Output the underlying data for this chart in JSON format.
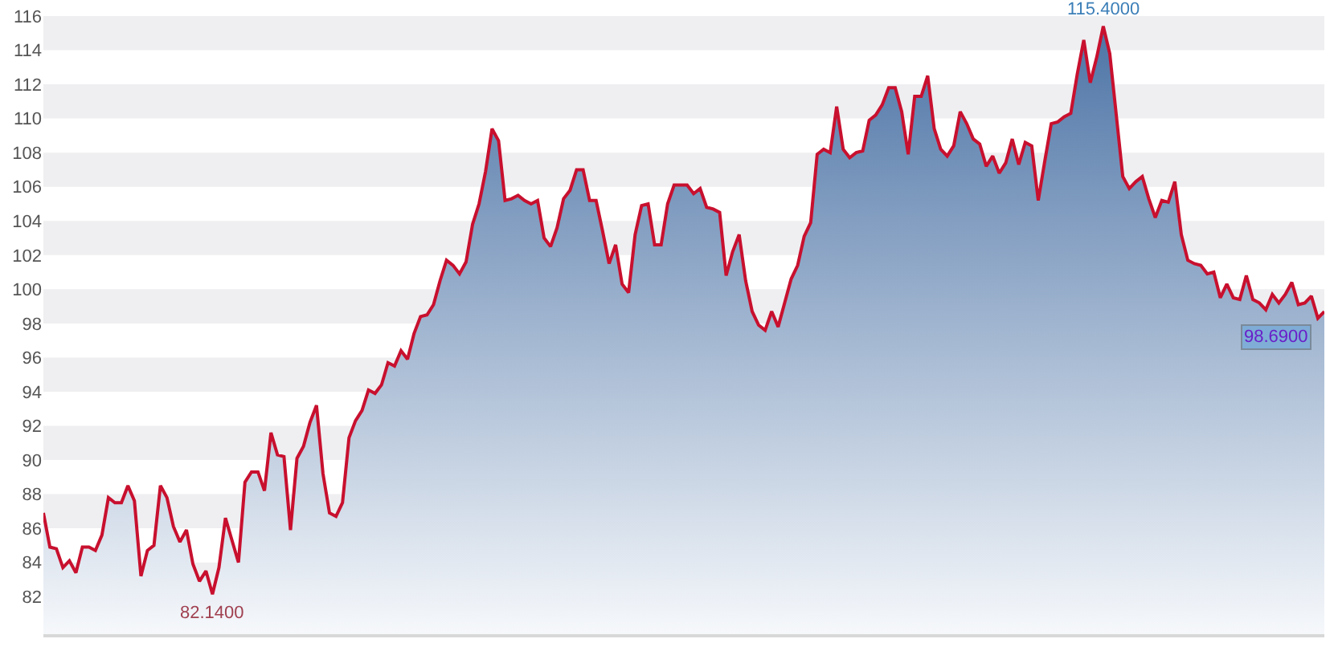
{
  "chart_data": {
    "type": "area",
    "categories": [
      null,
      null,
      null,
      null,
      null,
      null,
      null,
      null,
      null,
      null,
      null,
      null,
      null,
      null,
      null,
      null,
      null,
      null,
      null,
      null,
      null,
      null,
      null,
      null,
      null,
      null,
      null,
      null,
      null,
      null,
      null,
      null,
      null,
      null,
      null,
      null,
      null,
      null,
      null,
      null,
      null,
      null,
      null,
      null,
      null,
      null,
      null,
      null,
      null,
      null,
      null,
      null,
      null,
      null,
      null,
      null,
      null,
      null,
      null,
      null,
      null,
      null,
      null,
      null,
      null,
      null,
      null,
      null,
      null,
      null,
      null,
      null,
      null,
      null,
      null,
      null,
      null,
      null,
      null,
      null,
      null,
      null,
      null,
      null,
      null,
      null,
      null,
      null,
      null,
      null,
      null,
      null,
      null,
      null,
      null,
      null,
      null,
      null,
      null,
      null,
      null,
      null,
      null,
      null,
      null,
      null,
      null,
      null,
      null,
      null,
      null,
      null,
      null,
      null,
      null,
      null,
      null,
      null,
      null,
      null,
      null,
      null,
      null,
      null,
      null,
      null,
      null,
      null,
      null,
      null,
      null,
      null,
      null,
      null,
      null,
      null,
      null,
      null,
      null,
      null,
      null,
      null,
      null,
      null,
      null,
      null,
      null,
      null,
      null,
      null,
      null,
      null,
      null,
      null,
      null,
      null,
      null,
      null,
      null,
      null,
      null,
      null,
      null,
      null,
      null,
      null,
      null,
      null,
      null,
      null,
      null,
      null,
      null,
      null,
      null,
      null,
      null,
      null,
      null,
      null,
      null,
      null,
      null,
      null,
      null,
      null,
      null,
      null,
      null,
      null,
      null,
      null,
      null,
      null,
      null,
      null,
      null,
      null
    ],
    "series": [
      {
        "color": "#c8102e",
        "values": [
          86.9,
          84.9,
          84.8,
          83.7,
          84.1,
          83.4,
          84.9,
          84.9,
          84.7,
          85.6,
          87.8,
          87.5,
          87.5,
          88.5,
          87.6,
          83.2,
          84.7,
          85.0,
          88.5,
          87.8,
          86.1,
          85.2,
          85.9,
          83.9,
          82.9,
          83.5,
          82.14,
          83.7,
          86.6,
          85.3,
          84.0,
          88.7,
          89.3,
          89.3,
          88.2,
          91.6,
          90.3,
          90.2,
          85.9,
          90.1,
          90.8,
          92.2,
          93.2,
          89.2,
          86.9,
          86.7,
          87.5,
          91.3,
          92.3,
          92.9,
          94.1,
          93.9,
          94.4,
          95.7,
          95.5,
          96.4,
          95.9,
          97.4,
          98.4,
          98.5,
          99.1,
          100.5,
          101.7,
          101.4,
          100.9,
          101.6,
          103.8,
          105.0,
          106.9,
          109.4,
          108.7,
          105.2,
          105.3,
          105.5,
          105.2,
          105.0,
          105.2,
          103.0,
          102.5,
          103.6,
          105.3,
          105.8,
          107.0,
          107.0,
          105.2,
          105.2,
          103.4,
          101.5,
          102.6,
          100.3,
          99.8,
          103.2,
          104.9,
          105.0,
          102.6,
          102.6,
          105.0,
          106.1,
          106.1,
          106.1,
          105.6,
          105.9,
          104.8,
          104.7,
          104.5,
          100.8,
          102.2,
          103.2,
          100.5,
          98.7,
          97.9,
          97.6,
          98.7,
          97.8,
          99.2,
          100.6,
          101.4,
          103.1,
          103.9,
          107.9,
          108.2,
          108.0,
          110.7,
          108.2,
          107.7,
          108.0,
          108.1,
          109.9,
          110.2,
          110.8,
          111.8,
          111.8,
          110.4,
          107.9,
          111.3,
          111.3,
          112.5,
          109.4,
          108.2,
          107.8,
          108.4,
          110.4,
          109.7,
          108.8,
          108.5,
          107.2,
          107.8,
          106.8,
          107.4,
          108.8,
          107.3,
          108.6,
          108.4,
          105.2,
          107.5,
          109.7,
          109.8,
          110.1,
          110.3,
          112.6,
          114.6,
          112.1,
          113.6,
          115.4,
          113.8,
          110.2,
          106.6,
          105.9,
          106.3,
          106.6,
          105.3,
          104.2,
          105.2,
          105.1,
          106.3,
          103.2,
          101.7,
          101.5,
          101.4,
          100.9,
          101.0,
          99.5,
          100.3,
          99.5,
          99.4,
          100.8,
          99.4,
          99.2,
          98.8,
          99.7,
          99.2,
          99.7,
          100.4,
          99.1,
          99.2,
          99.6,
          98.3,
          98.69
        ]
      }
    ],
    "ylim": [
      79.8,
      116
    ],
    "yticks": [
      82,
      84,
      86,
      88,
      90,
      92,
      94,
      96,
      98,
      100,
      102,
      104,
      106,
      108,
      110,
      112,
      114,
      116
    ],
    "bands": [
      {
        "axis": "y",
        "from": 82,
        "to": 84,
        "color": "#efeff1"
      },
      {
        "axis": "y",
        "from": 86,
        "to": 88,
        "color": "#efeff1"
      },
      {
        "axis": "y",
        "from": 90,
        "to": 92,
        "color": "#efeff1"
      },
      {
        "axis": "y",
        "from": 94,
        "to": 96,
        "color": "#efeff1"
      },
      {
        "axis": "y",
        "from": 98,
        "to": 100,
        "color": "#efeff1"
      },
      {
        "axis": "y",
        "from": 102,
        "to": 104,
        "color": "#efeff1"
      },
      {
        "axis": "y",
        "from": 106,
        "to": 108,
        "color": "#efeff1"
      },
      {
        "axis": "y",
        "from": 110,
        "to": 112,
        "color": "#efeff1"
      },
      {
        "axis": "y",
        "from": 114,
        "to": 116,
        "color": "#efeff1"
      }
    ],
    "annotations": [
      {
        "text": "115.4000",
        "y": 115.4
      },
      {
        "text": "82.1400",
        "y": 82.14
      },
      "98.6900"
    ],
    "grid": false,
    "tick_labels": "y",
    "marker": "none",
    "line_style": "solid"
  }
}
